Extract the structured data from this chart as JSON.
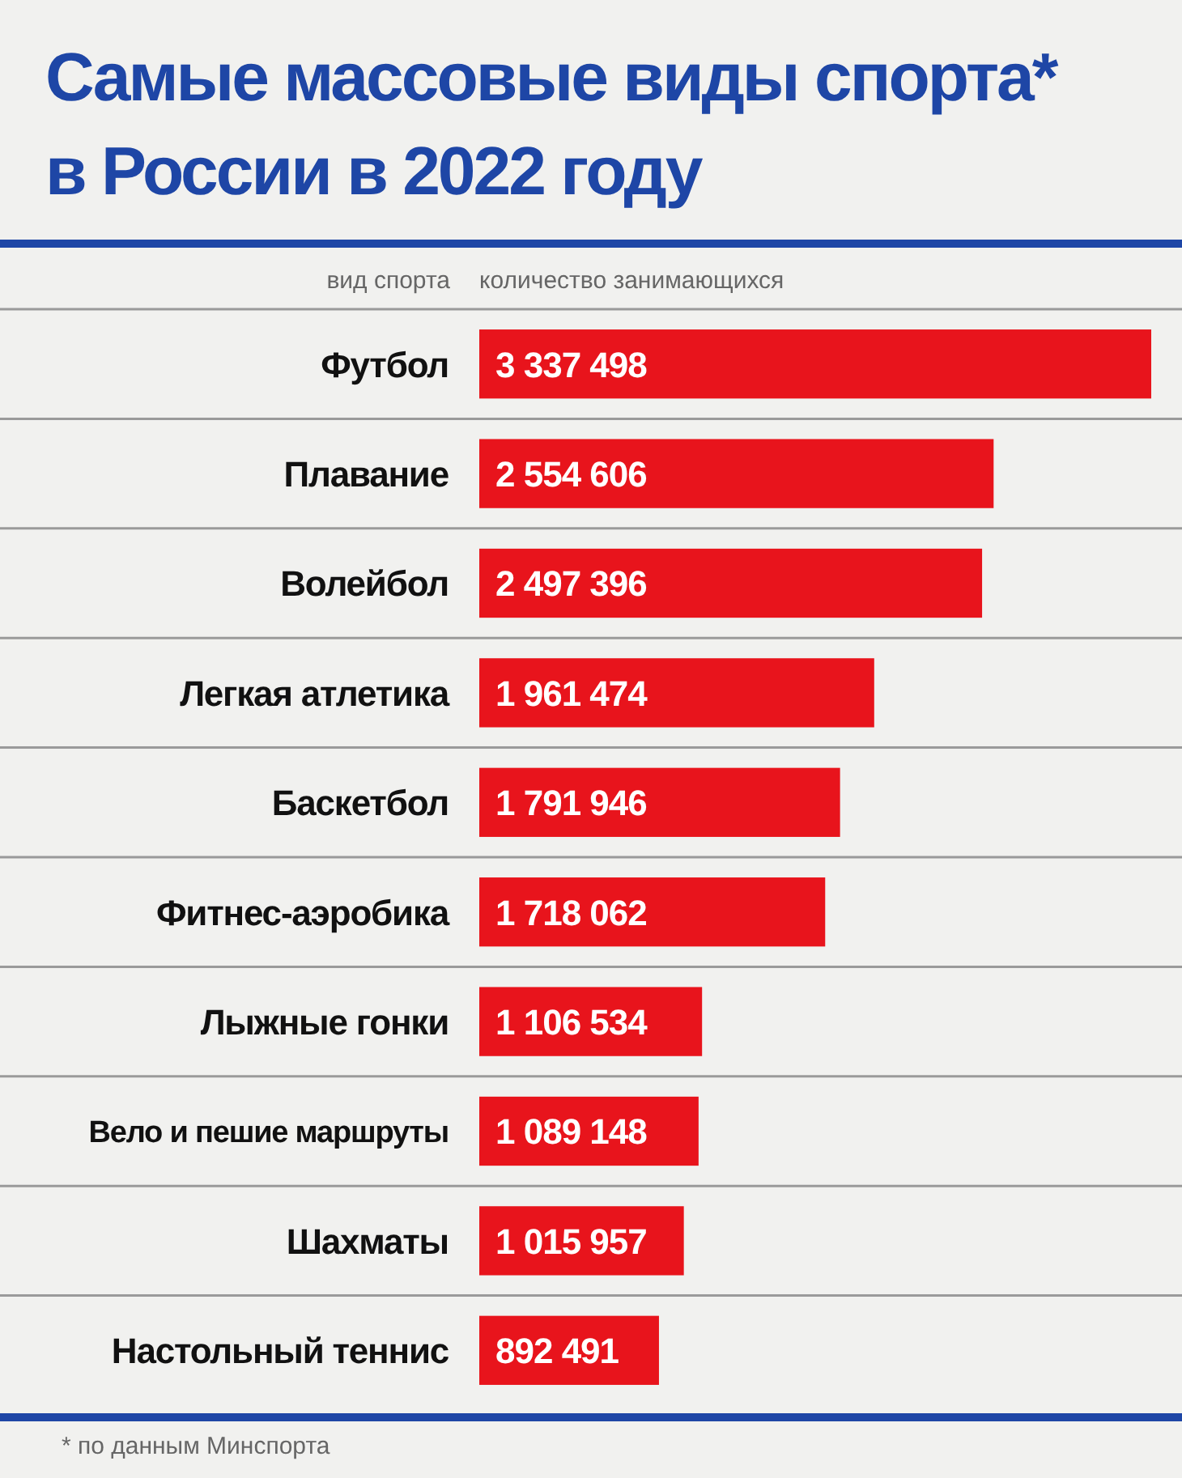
{
  "chart_data": {
    "type": "bar",
    "orientation": "horizontal",
    "title": "Самые массовые виды спорта*\nв России в 2022 году",
    "ylabel": "вид спорта",
    "xlabel": "количество занимающихся",
    "categories": [
      "Футбол",
      "Плавание",
      "Волейбол",
      "Легкая атлетика",
      "Баскетбол",
      "Фитнес-аэробика",
      "Лыжные гонки",
      "Вело и пешие маршруты",
      "Шахматы",
      "Настольный теннис"
    ],
    "values": [
      3337498,
      2554606,
      2497396,
      1961474,
      1791946,
      1718062,
      1106534,
      1089148,
      1015957,
      892491
    ],
    "value_labels": [
      "3 337 498",
      "2 554 606",
      "2 497 396",
      "1 961 474",
      "1 791 946",
      "1 718 062",
      "1 106 534",
      "1 089 148",
      "1 015 957",
      "892 491"
    ],
    "color": "#e8141c",
    "grid": "y",
    "annotations": [
      "* по данным Минспорта"
    ]
  }
}
